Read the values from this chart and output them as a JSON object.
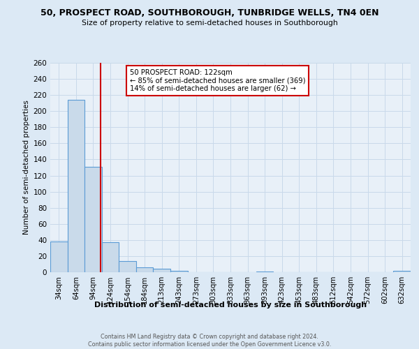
{
  "title": "50, PROSPECT ROAD, SOUTHBOROUGH, TUNBRIDGE WELLS, TN4 0EN",
  "subtitle": "Size of property relative to semi-detached houses in Southborough",
  "xlabel": "Distribution of semi-detached houses by size in Southborough",
  "ylabel": "Number of semi-detached properties",
  "footer_line1": "Contains HM Land Registry data © Crown copyright and database right 2024.",
  "footer_line2": "Contains public sector information licensed under the Open Government Licence v3.0.",
  "bin_labels": [
    "34sqm",
    "64sqm",
    "94sqm",
    "124sqm",
    "154sqm",
    "184sqm",
    "213sqm",
    "243sqm",
    "273sqm",
    "303sqm",
    "333sqm",
    "363sqm",
    "393sqm",
    "423sqm",
    "453sqm",
    "483sqm",
    "512sqm",
    "542sqm",
    "572sqm",
    "602sqm",
    "632sqm"
  ],
  "bar_values": [
    38,
    214,
    131,
    37,
    14,
    6,
    4,
    2,
    0,
    0,
    0,
    0,
    1,
    0,
    0,
    0,
    0,
    0,
    0,
    0,
    2
  ],
  "bar_color": "#c9daea",
  "bar_edge_color": "#5b9bd5",
  "grid_color": "#c9d9ea",
  "background_color": "#dce9f5",
  "plot_bg_color": "#e8f0f8",
  "ylim": [
    0,
    260
  ],
  "yticks": [
    0,
    20,
    40,
    60,
    80,
    100,
    120,
    140,
    160,
    180,
    200,
    220,
    240,
    260
  ],
  "annotation_title": "50 PROSPECT ROAD: 122sqm",
  "annotation_line1": "← 85% of semi-detached houses are smaller (369)",
  "annotation_line2": "14% of semi-detached houses are larger (62) →",
  "vline_color": "#cc0000",
  "annotation_box_edge": "#cc0000"
}
